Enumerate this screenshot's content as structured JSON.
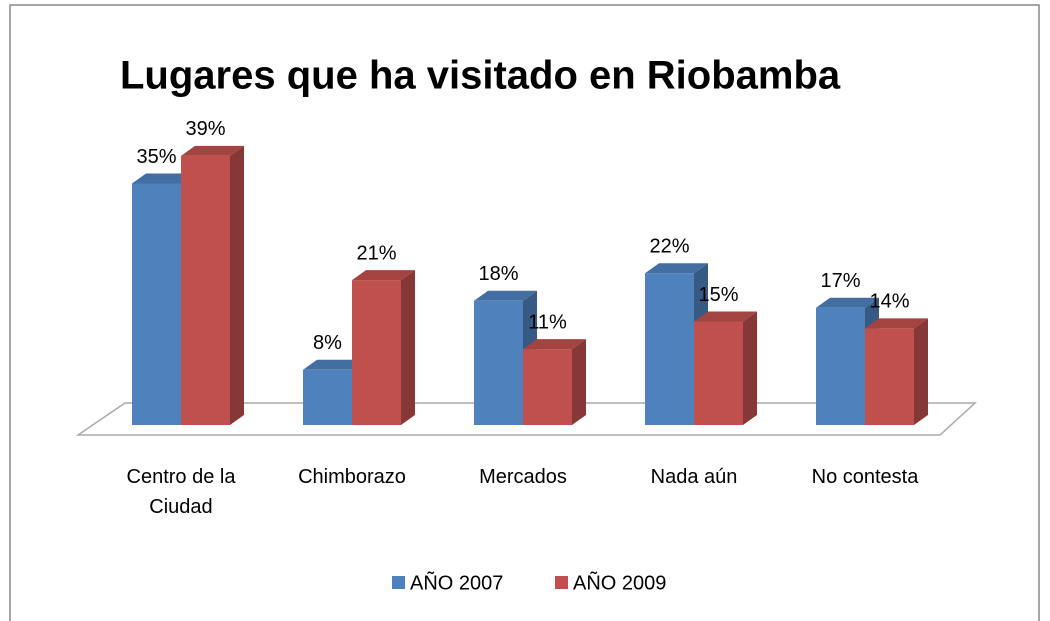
{
  "chart_data": {
    "type": "bar3d",
    "title": "Lugares que ha visitado en Riobamba",
    "categories": [
      "Centro de la Ciudad",
      "Chimborazo",
      "Mercados",
      "Nada aún",
      "No contesta"
    ],
    "series": [
      {
        "name": "AÑO 2007",
        "color": "#4f81bd",
        "values": [
          35,
          8,
          18,
          22,
          17
        ],
        "value_labels": [
          "35%",
          "8%",
          "18%",
          "22%",
          "17%"
        ]
      },
      {
        "name": "AÑO 2009",
        "color": "#c0504d",
        "values": [
          39,
          21,
          11,
          15,
          14
        ],
        "value_labels": [
          "39%",
          "21%",
          "11%",
          "15%",
          "14%"
        ]
      }
    ],
    "legend": "bottom"
  }
}
